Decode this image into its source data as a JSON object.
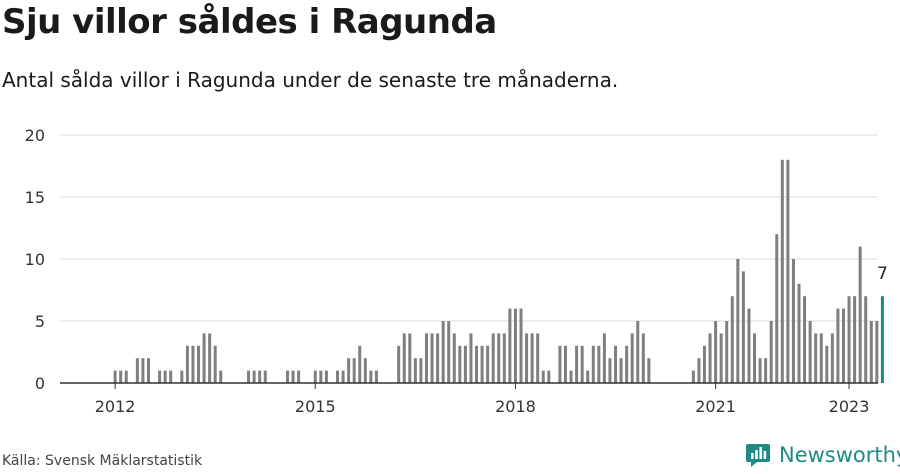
{
  "header": {
    "title": "Sju villor såldes i Ragunda",
    "subtitle": "Antal sålda villor i Ragunda under de senaste tre månaderna."
  },
  "footer": {
    "source": "Källa: Svensk Mäklarstatistik",
    "brand": "Newsworthy",
    "brand_icon": "newsworthy-logo-icon"
  },
  "colors": {
    "bar": "#7f7f7f",
    "highlight": "#1a8a84",
    "grid": "#dddddd",
    "axis": "#333333",
    "brand": "#1f8a83"
  },
  "chart_data": {
    "type": "bar",
    "title": "",
    "xlabel": "",
    "ylabel": "",
    "ylim": [
      0,
      20
    ],
    "yticks": [
      0,
      5,
      10,
      15,
      20
    ],
    "xticks": [
      "2012",
      "2015",
      "2018",
      "2021",
      "2023"
    ],
    "grid": true,
    "start": "2011-01",
    "frequency": "monthly",
    "values": [
      0,
      0,
      0,
      0,
      0,
      0,
      0,
      0,
      0,
      0,
      0,
      0,
      1,
      1,
      1,
      0,
      2,
      2,
      2,
      0,
      1,
      1,
      1,
      0,
      1,
      3,
      3,
      3,
      4,
      4,
      3,
      1,
      0,
      0,
      0,
      0,
      1,
      1,
      1,
      1,
      0,
      0,
      0,
      1,
      1,
      1,
      0,
      0,
      1,
      1,
      1,
      0,
      1,
      1,
      2,
      2,
      3,
      2,
      1,
      1,
      0,
      0,
      0,
      3,
      4,
      4,
      2,
      2,
      4,
      4,
      4,
      5,
      5,
      4,
      3,
      3,
      4,
      3,
      3,
      3,
      4,
      4,
      4,
      6,
      6,
      6,
      4,
      4,
      4,
      1,
      1,
      0,
      3,
      3,
      1,
      3,
      3,
      1,
      3,
      3,
      4,
      2,
      3,
      2,
      3,
      4,
      5,
      4,
      2,
      0,
      0,
      0,
      0,
      0,
      0,
      0,
      1,
      2,
      3,
      4,
      5,
      4,
      5,
      7,
      10,
      9,
      6,
      4,
      2,
      2,
      5,
      12,
      18,
      18,
      10,
      8,
      7,
      5,
      4,
      4,
      3,
      4,
      6,
      6,
      7,
      7,
      11,
      7,
      5,
      5,
      7
    ],
    "highlight_label": "7"
  }
}
